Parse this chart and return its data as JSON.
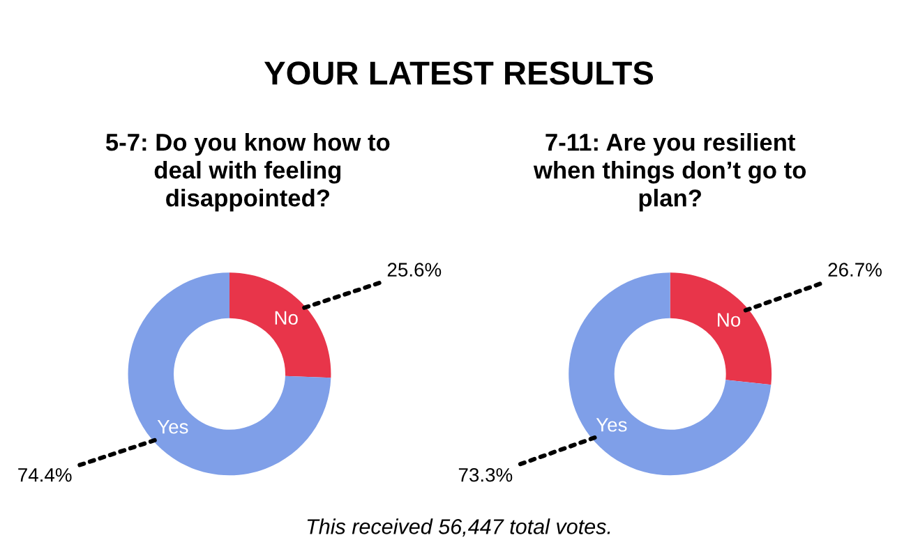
{
  "chart_data": [
    {
      "type": "donut",
      "title": "5-7: Do you know how to\ndeal with feeling\ndisappointed?",
      "categories": [
        "No",
        "Yes"
      ],
      "values": [
        25.6,
        74.4
      ],
      "colors": [
        "#e8354a",
        "#7f9fe8"
      ],
      "value_labels": [
        "25.6%",
        "74.4%"
      ],
      "annotations": [
        "YOUR LATEST RESULTS"
      ]
    },
    {
      "type": "donut",
      "title": "7-11: Are you resilient\nwhen things don’t go to\nplan?",
      "categories": [
        "No",
        "Yes"
      ],
      "values": [
        26.7,
        73.3
      ],
      "colors": [
        "#e8354a",
        "#7f9fe8"
      ],
      "value_labels": [
        "26.7%",
        "73.3%"
      ],
      "annotations": [
        "This received 56,447 total votes."
      ]
    }
  ]
}
